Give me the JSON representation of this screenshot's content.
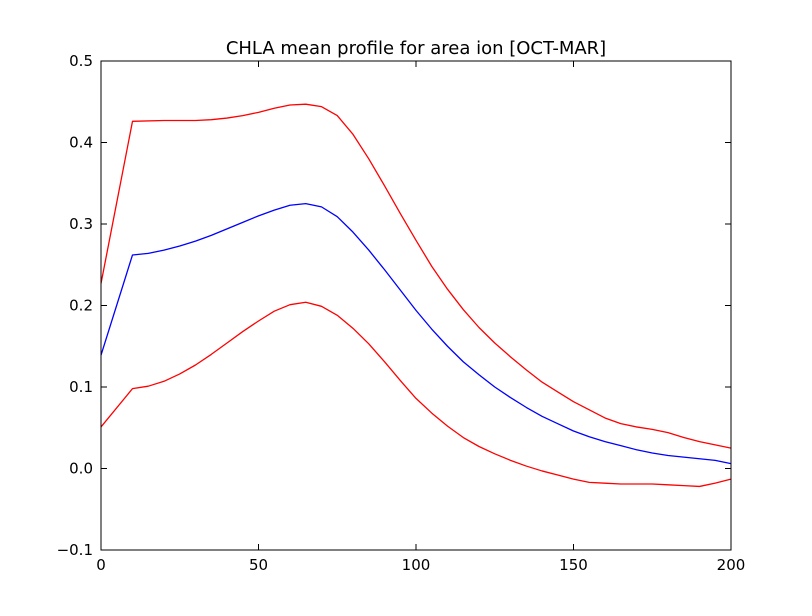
{
  "chart_data": {
    "type": "line",
    "title": "CHLA mean profile for area ion [OCT-MAR]",
    "xlabel": "",
    "ylabel": "",
    "xlim": [
      0,
      200
    ],
    "ylim": [
      -0.1,
      0.5
    ],
    "grid": false,
    "legend": "none",
    "x_ticks": [
      0,
      50,
      100,
      150,
      200
    ],
    "x_tick_labels": [
      "0",
      "50",
      "100",
      "150",
      "200"
    ],
    "y_ticks": [
      -0.1,
      0.0,
      0.1,
      0.2,
      0.3,
      0.4,
      0.5
    ],
    "y_tick_labels": [
      "−0.1",
      "0.0",
      "0.1",
      "0.2",
      "0.3",
      "0.4",
      "0.5"
    ],
    "series": [
      {
        "color": "#0000ff",
        "x": [
          0,
          10,
          15,
          20,
          25,
          30,
          35,
          40,
          45,
          50,
          55,
          60,
          65,
          70,
          75,
          80,
          85,
          90,
          95,
          100,
          105,
          110,
          115,
          120,
          125,
          130,
          135,
          140,
          145,
          150,
          155,
          160,
          165,
          170,
          175,
          180,
          185,
          190,
          195,
          200
        ],
        "y": [
          0.139,
          0.262,
          0.264,
          0.268,
          0.273,
          0.279,
          0.286,
          0.294,
          0.302,
          0.31,
          0.317,
          0.323,
          0.325,
          0.321,
          0.309,
          0.29,
          0.268,
          0.244,
          0.219,
          0.194,
          0.171,
          0.15,
          0.131,
          0.115,
          0.1,
          0.087,
          0.075,
          0.064,
          0.055,
          0.046,
          0.039,
          0.033,
          0.028,
          0.023,
          0.019,
          0.016,
          0.014,
          0.012,
          0.01,
          0.006
        ]
      },
      {
        "color": "#ff0000",
        "x": [
          0,
          10,
          20,
          30,
          35,
          40,
          45,
          50,
          55,
          60,
          65,
          70,
          75,
          80,
          85,
          90,
          95,
          100,
          105,
          110,
          115,
          120,
          125,
          130,
          135,
          140,
          145,
          150,
          155,
          160,
          165,
          170,
          175,
          180,
          185,
          190,
          195,
          200
        ],
        "y": [
          0.227,
          0.426,
          0.427,
          0.427,
          0.428,
          0.43,
          0.433,
          0.437,
          0.442,
          0.446,
          0.447,
          0.444,
          0.433,
          0.41,
          0.38,
          0.347,
          0.313,
          0.28,
          0.248,
          0.22,
          0.195,
          0.173,
          0.154,
          0.137,
          0.121,
          0.106,
          0.094,
          0.082,
          0.072,
          0.062,
          0.055,
          0.051,
          0.048,
          0.044,
          0.038,
          0.033,
          0.029,
          0.025
        ]
      },
      {
        "color": "#ff0000",
        "x": [
          0,
          10,
          15,
          20,
          25,
          30,
          35,
          40,
          45,
          50,
          55,
          60,
          65,
          70,
          75,
          80,
          85,
          90,
          95,
          100,
          105,
          110,
          115,
          120,
          125,
          130,
          135,
          140,
          145,
          150,
          155,
          160,
          165,
          170,
          175,
          180,
          185,
          190,
          195,
          200
        ],
        "y": [
          0.051,
          0.098,
          0.101,
          0.107,
          0.116,
          0.127,
          0.14,
          0.154,
          0.168,
          0.181,
          0.193,
          0.201,
          0.204,
          0.199,
          0.188,
          0.172,
          0.153,
          0.131,
          0.108,
          0.086,
          0.068,
          0.052,
          0.038,
          0.027,
          0.018,
          0.01,
          0.003,
          -0.003,
          -0.008,
          -0.013,
          -0.017,
          -0.018,
          -0.019,
          -0.019,
          -0.019,
          -0.02,
          -0.021,
          -0.022,
          -0.018,
          -0.013
        ]
      }
    ]
  }
}
